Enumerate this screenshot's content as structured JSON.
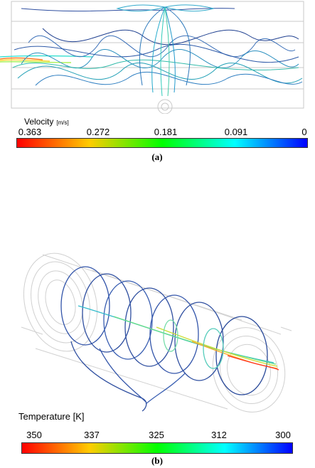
{
  "figure_a": {
    "legend": {
      "title": "Velocity",
      "unit": "[m/s]",
      "ticks": [
        "0.363",
        "0.272",
        "0.181",
        "0.091",
        "0"
      ],
      "colormap": [
        "#ff0000",
        "#ffcc00",
        "#00ff00",
        "#00ffff",
        "#0000ff"
      ]
    },
    "caption": "(a)"
  },
  "figure_b": {
    "legend": {
      "title": "Temperature [K]",
      "ticks": [
        "350",
        "337",
        "325",
        "312",
        "300"
      ],
      "colormap": [
        "#ff0000",
        "#ffcc00",
        "#00ff00",
        "#00ffff",
        "#0000ff"
      ]
    },
    "caption": "(b)"
  }
}
